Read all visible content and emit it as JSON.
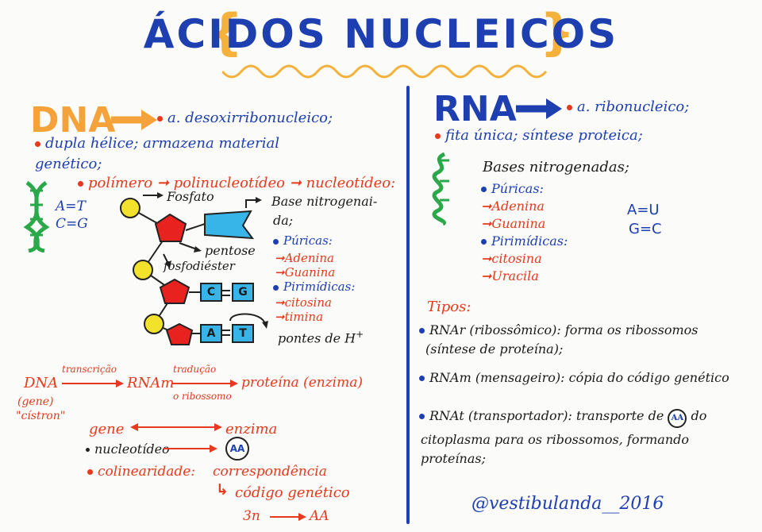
{
  "title": "ÁCIDOS NUCLEICOS",
  "dna": {
    "label": "DNA",
    "name": "a. desoxirribonucleico;",
    "line1": "dupla hélice; armazena material",
    "line2": "genético;",
    "polymer": {
      "a": "polímero",
      "b": "polinucleotídeo",
      "c": "nucleotídeo:"
    },
    "pairs": {
      "a": "A=T",
      "c": "C=G"
    },
    "diagram": {
      "fosfato": "Fosfato",
      "base1": "Base nitrogenai-",
      "base2": "da;",
      "pentose": "pentose",
      "fosfodiester": "fosfodiéster",
      "purine_label": "Púricas:",
      "adenina": "Adenina",
      "guanina": "Guanina",
      "pyrimidine_label": "Pirimídicas:",
      "citosina": "citosina",
      "timina": "timina",
      "pontes": "pontes de H",
      "pontes_sup": "+",
      "box_c": "C",
      "box_g": "G",
      "box_a": "A",
      "box_t": "T"
    }
  },
  "flow": {
    "dna": "DNA",
    "gene": "(gene)",
    "cistron": "\"cístron\"",
    "transcricao": "transcrição",
    "rnam": "RNAm",
    "traducao": "tradução",
    "ribossomo": "o ribossomo",
    "proteina": "proteína (enzima)",
    "gene2": "gene",
    "enzima": "enzima",
    "nucleotideo": "nucleotídeo",
    "aa": "AA",
    "colinearidade": "colinearidade:",
    "correspondencia": "correspondência",
    "codigo": "código genético",
    "ratio_left": "3n",
    "ratio_right": "AA"
  },
  "rna": {
    "label": "RNA",
    "name": "a. ribonucleico;",
    "line1": "fita única; síntese proteica;",
    "bases_title": "Bases nitrogenadas;",
    "purine_label": "Púricas:",
    "adenina": "Adenina",
    "guanina": "Guanina",
    "pyrimidine_label": "Pirimídicas:",
    "citosina": "citosina",
    "uracila": "Uracila",
    "pair_au": "A=U",
    "pair_gc": "G=C",
    "tipos_title": "Tipos:",
    "tipos": [
      {
        "line1": "RNAr (ribossômico): forma os ribossomos",
        "line2": "(síntese de proteína);"
      },
      {
        "line1": "RNAm (mensageiro): cópia do código genético",
        "line2": ""
      },
      {
        "line1_a": "RNAt (transportador): transporte de",
        "aa": "AA",
        "line1_b": "do",
        "line2": "citoplasma para os ribossomos, formando",
        "line3": "proteínas;"
      }
    ]
  },
  "signature": "@vestibulanda__2016",
  "colors": {
    "blue": "#1d3fb0",
    "red": "#e53a1e",
    "orange": "#f6a23a",
    "green": "#2aa84a",
    "cyan": "#38b5e8",
    "yellow": "#f3e22c"
  }
}
